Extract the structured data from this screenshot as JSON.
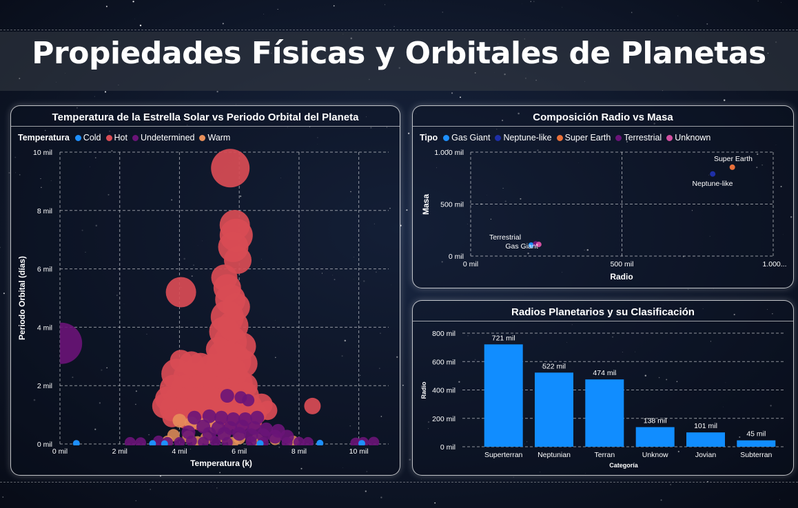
{
  "title": "Propiedades Físicas y Orbitales de Planetas",
  "colors": {
    "cold": "#1e90ff",
    "hot": "#d94c55",
    "undetermined": "#6a1478",
    "warm": "#e8905a",
    "gas_giant": "#1e90ff",
    "neptune_like": "#1e2fa8",
    "super_earth": "#e8703a",
    "terrestrial": "#6a1478",
    "unknown": "#d24fa0",
    "bar": "#118dff"
  },
  "scatter_panel": {
    "title": "Temperatura de la Estrella Solar vs Periodo Orbital del Planeta",
    "legend_title": "Temperatura",
    "legend": [
      "Cold",
      "Hot",
      "Undetermined",
      "Warm"
    ],
    "y_ticks": [
      "0 mil",
      "2 mil",
      "4 mil",
      "6 mil",
      "8 mil",
      "10 mil"
    ],
    "x_ticks": [
      "0 mil",
      "2 mil",
      "4 mil",
      "6 mil",
      "8 mil",
      "10 mil"
    ],
    "y_label": "Periodo Orbital (días)",
    "x_label": "Temperatura (k)"
  },
  "composition_panel": {
    "title": "Composición Radio vs Masa",
    "legend_title": "Tipo",
    "legend": [
      "Gas Giant",
      "Neptune-like",
      "Super Earth",
      "Terrestrial",
      "Unknown"
    ],
    "y_ticks": [
      "0 mil",
      "500 mil",
      "1.000 mil"
    ],
    "x_ticks": [
      "0 mil",
      "500 mil",
      "1.000..."
    ],
    "y_label": "Masa",
    "x_label": "Radio",
    "point_labels": [
      "Super Earth",
      "Neptune-like",
      "Terrestrial",
      "Gas Giant"
    ]
  },
  "bar_panel": {
    "title": "Radios Planetarios y su Clasificación",
    "y_ticks": [
      "0 mil",
      "200 mil",
      "400 mil",
      "600 mil",
      "800 mil"
    ],
    "y_label": "Radio",
    "x_label": "Categoría"
  },
  "chart_data": [
    {
      "type": "scatter",
      "title": "Temperatura de la Estrella Solar vs Periodo Orbital del Planeta",
      "xlabel": "Temperatura (k)",
      "ylabel": "Periodo Orbital (días)",
      "xlim": [
        0,
        11000
      ],
      "ylim": [
        0,
        10000
      ],
      "grid": true,
      "legend_position": "top-left",
      "series": [
        {
          "name": "Hot",
          "points": [
            [
              5700,
              9450,
              28
            ],
            [
              5850,
              7500,
              22
            ],
            [
              5900,
              7150,
              24
            ],
            [
              5800,
              6750,
              22
            ],
            [
              5950,
              6300,
              20
            ],
            [
              5500,
              5700,
              19
            ],
            [
              5600,
              5350,
              20
            ],
            [
              4050,
              5200,
              22
            ],
            [
              5700,
              4950,
              22
            ],
            [
              5900,
              4700,
              20
            ],
            [
              5600,
              4350,
              24
            ],
            [
              5800,
              4050,
              22
            ],
            [
              5500,
              3850,
              22
            ],
            [
              5700,
              3500,
              24
            ],
            [
              6100,
              3350,
              20
            ],
            [
              5300,
              3250,
              18
            ],
            [
              5500,
              3000,
              24
            ],
            [
              5800,
              2850,
              26
            ],
            [
              6150,
              2750,
              20
            ],
            [
              4050,
              2850,
              16
            ],
            [
              4400,
              2750,
              18
            ],
            [
              4700,
              2650,
              20
            ],
            [
              5050,
              2600,
              20
            ],
            [
              5400,
              2550,
              24
            ],
            [
              5700,
              2450,
              24
            ],
            [
              3900,
              2400,
              22
            ],
            [
              4300,
              2300,
              22
            ],
            [
              4700,
              2250,
              22
            ],
            [
              5100,
              2200,
              24
            ],
            [
              5500,
              2150,
              26
            ],
            [
              5900,
              2050,
              24
            ],
            [
              6200,
              2000,
              18
            ],
            [
              3800,
              1900,
              20
            ],
            [
              4200,
              1850,
              22
            ],
            [
              4600,
              1800,
              22
            ],
            [
              5000,
              1800,
              24
            ],
            [
              5400,
              1750,
              24
            ],
            [
              5800,
              1700,
              24
            ],
            [
              6200,
              1650,
              20
            ],
            [
              3600,
              1550,
              18
            ],
            [
              3950,
              1500,
              20
            ],
            [
              4350,
              1450,
              20
            ],
            [
              4750,
              1450,
              22
            ],
            [
              5150,
              1400,
              22
            ],
            [
              5550,
              1350,
              22
            ],
            [
              5950,
              1300,
              20
            ],
            [
              6350,
              1300,
              18
            ],
            [
              6750,
              1350,
              16
            ],
            [
              3500,
              1300,
              18
            ],
            [
              3750,
              1200,
              18
            ],
            [
              4150,
              1150,
              18
            ],
            [
              4550,
              1100,
              18
            ],
            [
              4950,
              1100,
              18
            ],
            [
              5350,
              1050,
              18
            ],
            [
              5750,
              1000,
              18
            ],
            [
              6150,
              1000,
              18
            ],
            [
              6550,
              1050,
              16
            ],
            [
              6950,
              1150,
              14
            ],
            [
              3750,
              900,
              14
            ],
            [
              4200,
              850,
              14
            ],
            [
              4650,
              800,
              14
            ],
            [
              5100,
              800,
              14
            ],
            [
              5550,
              750,
              14
            ],
            [
              6000,
              750,
              14
            ],
            [
              6450,
              800,
              14
            ],
            [
              8450,
              1300,
              12
            ]
          ]
        },
        {
          "name": "Warm",
          "points": [
            [
              4000,
              800,
              10
            ],
            [
              4400,
              700,
              10
            ],
            [
              4800,
              650,
              10
            ],
            [
              5200,
              600,
              10
            ],
            [
              3800,
              300,
              9
            ],
            [
              4300,
              250,
              9
            ],
            [
              4900,
              200,
              9
            ],
            [
              5500,
              250,
              9
            ],
            [
              6000,
              200,
              9
            ],
            [
              6600,
              150,
              9
            ],
            [
              7200,
              150,
              8
            ],
            [
              7800,
              100,
              8
            ],
            [
              3600,
              100,
              8
            ],
            [
              4600,
              80,
              8
            ],
            [
              5800,
              60,
              8
            ]
          ]
        },
        {
          "name": "Undetermined",
          "points": [
            [
              50,
              3450,
              30
            ],
            [
              5600,
              1650,
              10
            ],
            [
              6050,
              1600,
              9
            ],
            [
              6300,
              1500,
              9
            ],
            [
              4500,
              900,
              10
            ],
            [
              5000,
              950,
              10
            ],
            [
              5400,
              900,
              10
            ],
            [
              5800,
              850,
              10
            ],
            [
              6200,
              850,
              10
            ],
            [
              6600,
              900,
              10
            ],
            [
              4800,
              600,
              10
            ],
            [
              5300,
              550,
              10
            ],
            [
              5700,
              550,
              10
            ],
            [
              6100,
              600,
              10
            ],
            [
              6500,
              550,
              10
            ],
            [
              6900,
              500,
              10
            ],
            [
              7300,
              450,
              10
            ],
            [
              4300,
              400,
              10
            ],
            [
              5000,
              350,
              10
            ],
            [
              5500,
              350,
              10
            ],
            [
              6000,
              350,
              10
            ],
            [
              6400,
              300,
              10
            ],
            [
              6800,
              300,
              10
            ],
            [
              7200,
              250,
              10
            ],
            [
              7600,
              250,
              10
            ],
            [
              3300,
              100,
              8
            ],
            [
              3600,
              50,
              8
            ],
            [
              4000,
              50,
              8
            ],
            [
              4400,
              100,
              8
            ],
            [
              4800,
              60,
              8
            ],
            [
              5200,
              90,
              8
            ],
            [
              5600,
              50,
              8
            ],
            [
              6400,
              80,
              8
            ],
            [
              6800,
              50,
              8
            ],
            [
              7600,
              50,
              8
            ],
            [
              8000,
              60,
              8
            ],
            [
              8300,
              50,
              8
            ],
            [
              2350,
              50,
              8
            ],
            [
              2700,
              40,
              8
            ],
            [
              9900,
              30,
              8
            ],
            [
              10150,
              50,
              8
            ],
            [
              10500,
              60,
              8
            ]
          ]
        },
        {
          "name": "Cold",
          "points": [
            [
              550,
              20,
              5
            ],
            [
              3100,
              15,
              5
            ],
            [
              3500,
              10,
              5
            ],
            [
              6700,
              15,
              5
            ],
            [
              8700,
              25,
              5
            ],
            [
              10100,
              20,
              5
            ]
          ]
        }
      ]
    },
    {
      "type": "scatter",
      "title": "Composición Radio vs Masa",
      "xlabel": "Radio",
      "ylabel": "Masa",
      "xlim": [
        0,
        1000000
      ],
      "ylim": [
        0,
        1000000
      ],
      "grid": true,
      "legend_position": "top-left",
      "series": [
        {
          "name": "Gas Giant",
          "points": [
            [
              200000,
              105000
            ]
          ]
        },
        {
          "name": "Neptune-like",
          "points": [
            [
              800000,
              790000
            ]
          ]
        },
        {
          "name": "Super Earth",
          "points": [
            [
              865000,
              855000
            ]
          ]
        },
        {
          "name": "Terrestrial",
          "points": [
            [
              215000,
              118000
            ]
          ]
        },
        {
          "name": "Unknown",
          "points": [
            [
              225000,
              112000
            ]
          ]
        }
      ]
    },
    {
      "type": "bar",
      "title": "Radios Planetarios y su Clasificación",
      "xlabel": "Categoría",
      "ylabel": "Radio",
      "ylim": [
        0,
        800000
      ],
      "categories": [
        "Superterran",
        "Neptunian",
        "Terran",
        "Unknow",
        "Jovian",
        "Subterran"
      ],
      "values": [
        721000,
        522000,
        474000,
        138000,
        101000,
        45000
      ],
      "data_labels": [
        "721 mil",
        "522 mil",
        "474 mil",
        "138 mil",
        "101 mil",
        "45 mil"
      ],
      "grid": true
    }
  ]
}
